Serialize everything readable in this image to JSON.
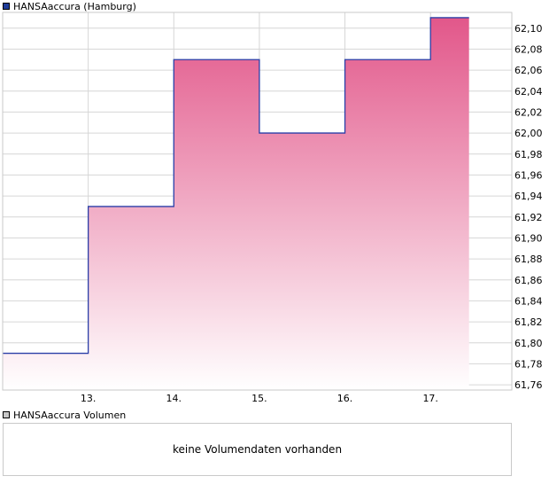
{
  "legend": {
    "price_label": "HANSAaccura (Hamburg)",
    "price_color": "#1f3c99",
    "volume_label": "HANSAaccura Volumen",
    "volume_color": "#c8c8c8"
  },
  "volume": {
    "message": "keine Volumendaten vorhanden"
  },
  "colors": {
    "line": "#2a3fa8",
    "fill_top": "#e2578a",
    "fill_bottom": "#ffffff",
    "grid": "#d6d6d6"
  },
  "chart_data": {
    "type": "area",
    "title": "HANSAaccura (Hamburg)",
    "x_tick_labels": [
      "13.",
      "14.",
      "15.",
      "16.",
      "17."
    ],
    "y_tick_labels": [
      "61,76",
      "61,78",
      "61,80",
      "61,82",
      "61,84",
      "61,86",
      "61,88",
      "61,90",
      "61,92",
      "61,94",
      "61,96",
      "61,98",
      "62,00",
      "62,02",
      "62,04",
      "62,06",
      "62,08",
      "62,10"
    ],
    "ylim": [
      61.755,
      62.115
    ],
    "xlim": [
      12.0,
      17.95
    ],
    "step_series": [
      {
        "x": 12.0,
        "y": 61.79
      },
      {
        "x": 13.0,
        "y": 61.93
      },
      {
        "x": 14.0,
        "y": 62.07
      },
      {
        "x": 15.0,
        "y": 62.0
      },
      {
        "x": 16.0,
        "y": 62.07
      },
      {
        "x": 17.0,
        "y": 62.11
      },
      {
        "x": 17.45,
        "y": 62.11
      }
    ],
    "grid": true,
    "legend_position": "top-left"
  }
}
